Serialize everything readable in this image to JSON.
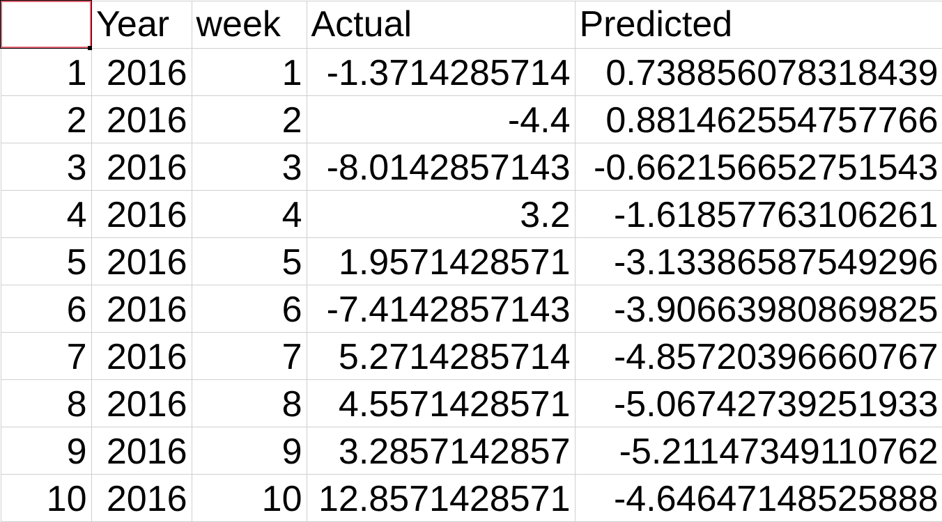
{
  "sheet": {
    "header": {
      "corner": "",
      "col_year": "Year",
      "col_week": "week",
      "col_actual": "Actual",
      "col_predicted": "Predicted"
    },
    "rows": [
      {
        "index": "1",
        "year": "2016",
        "week": "1",
        "actual": "-1.3714285714",
        "predicted": "0.738856078318439"
      },
      {
        "index": "2",
        "year": "2016",
        "week": "2",
        "actual": "-4.4",
        "predicted": "0.881462554757766"
      },
      {
        "index": "3",
        "year": "2016",
        "week": "3",
        "actual": "-8.0142857143",
        "predicted": "-0.662156652751543"
      },
      {
        "index": "4",
        "year": "2016",
        "week": "4",
        "actual": "3.2",
        "predicted": "-1.61857763106261"
      },
      {
        "index": "5",
        "year": "2016",
        "week": "5",
        "actual": "1.9571428571",
        "predicted": "-3.13386587549296"
      },
      {
        "index": "6",
        "year": "2016",
        "week": "6",
        "actual": "-7.4142857143",
        "predicted": "-3.90663980869825"
      },
      {
        "index": "7",
        "year": "2016",
        "week": "7",
        "actual": "5.2714285714",
        "predicted": "-4.85720396660767"
      },
      {
        "index": "8",
        "year": "2016",
        "week": "8",
        "actual": "4.5571428571",
        "predicted": "-5.06742739251933"
      },
      {
        "index": "9",
        "year": "2016",
        "week": "9",
        "actual": "3.2857142857",
        "predicted": "-5.21147349110762"
      },
      {
        "index": "10",
        "year": "2016",
        "week": "10",
        "actual": "12.8571428571",
        "predicted": "-4.64647148525888"
      }
    ]
  },
  "colors": {
    "gridline": "#cfcfcf",
    "selection_border": "#000000",
    "selection_accent": "#e06070"
  }
}
